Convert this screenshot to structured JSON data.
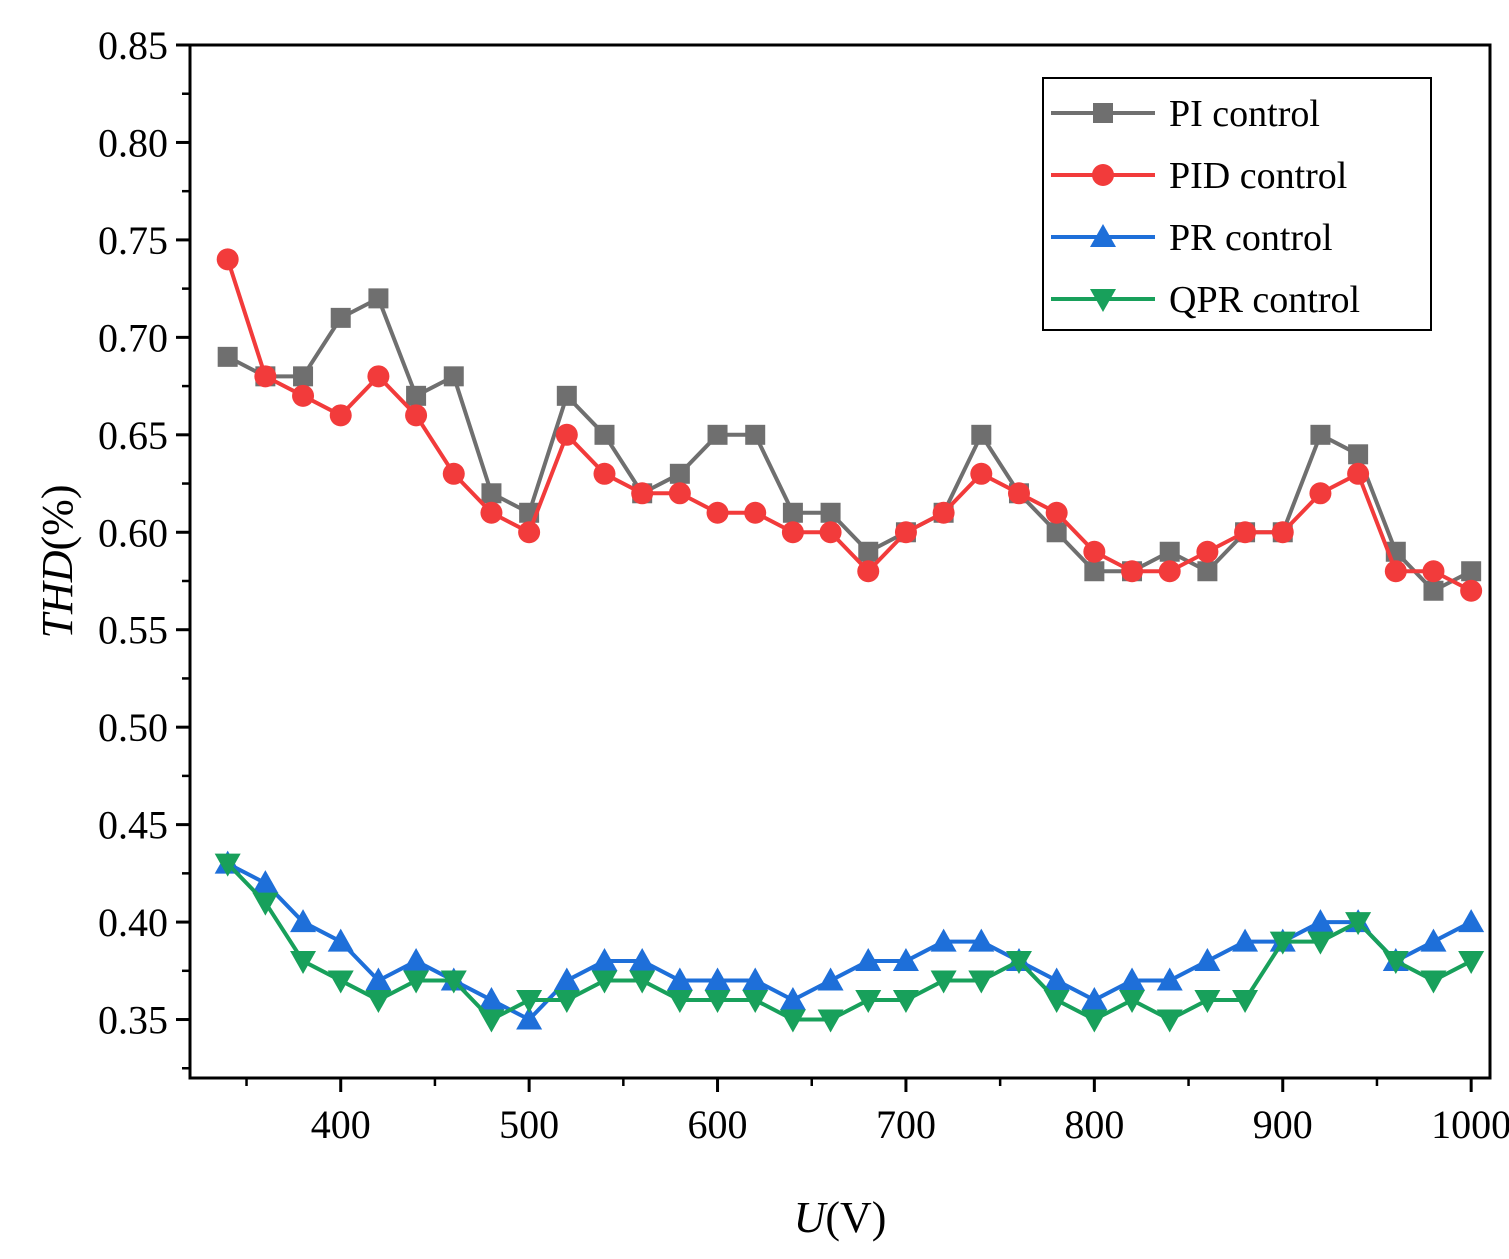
{
  "chart_data": {
    "type": "line",
    "xlabel": {
      "italic": "U",
      "normal": "(V)"
    },
    "ylabel": {
      "italic": "THD",
      "normal": "(%)"
    },
    "xlim": [
      320,
      1010
    ],
    "ylim": [
      0.32,
      0.85
    ],
    "xticks": [
      400,
      500,
      600,
      700,
      800,
      900,
      1000
    ],
    "yticks": [
      "0.35",
      "0.40",
      "0.45",
      "0.50",
      "0.55",
      "0.60",
      "0.65",
      "0.70",
      "0.75",
      "0.80",
      "0.85"
    ],
    "legend_position": "top-right",
    "grid": false,
    "x": [
      340,
      360,
      380,
      400,
      420,
      440,
      460,
      480,
      500,
      520,
      540,
      560,
      580,
      600,
      620,
      640,
      660,
      680,
      700,
      720,
      740,
      760,
      780,
      800,
      820,
      840,
      860,
      880,
      900,
      920,
      940,
      960,
      980,
      1000
    ],
    "series": [
      {
        "name": "PI control",
        "marker": "square",
        "color": "#6f6f6f",
        "values": [
          0.69,
          0.68,
          0.68,
          0.71,
          0.72,
          0.67,
          0.68,
          0.62,
          0.61,
          0.67,
          0.65,
          0.62,
          0.63,
          0.65,
          0.65,
          0.61,
          0.61,
          0.59,
          0.6,
          0.61,
          0.65,
          0.62,
          0.6,
          0.58,
          0.58,
          0.59,
          0.58,
          0.6,
          0.6,
          0.65,
          0.64,
          0.59,
          0.57,
          0.58
        ]
      },
      {
        "name": "PID control",
        "marker": "circle",
        "color": "#f23b3b",
        "values": [
          0.74,
          0.68,
          0.67,
          0.66,
          0.68,
          0.66,
          0.63,
          0.61,
          0.6,
          0.65,
          0.63,
          0.62,
          0.62,
          0.61,
          0.61,
          0.6,
          0.6,
          0.58,
          0.6,
          0.61,
          0.63,
          0.62,
          0.61,
          0.59,
          0.58,
          0.58,
          0.59,
          0.6,
          0.6,
          0.62,
          0.63,
          0.58,
          0.58,
          0.57
        ]
      },
      {
        "name": "PR control",
        "marker": "triangle-up",
        "color": "#1e6fd9",
        "values": [
          0.43,
          0.42,
          0.4,
          0.39,
          0.37,
          0.38,
          0.37,
          0.36,
          0.35,
          0.37,
          0.38,
          0.38,
          0.37,
          0.37,
          0.37,
          0.36,
          0.37,
          0.38,
          0.38,
          0.39,
          0.39,
          0.38,
          0.37,
          0.36,
          0.37,
          0.37,
          0.38,
          0.39,
          0.39,
          0.4,
          0.4,
          0.38,
          0.39,
          0.4
        ]
      },
      {
        "name": "QPR control",
        "marker": "triangle-down",
        "color": "#18a05b",
        "values": [
          0.43,
          0.41,
          0.38,
          0.37,
          0.36,
          0.37,
          0.37,
          0.35,
          0.36,
          0.36,
          0.37,
          0.37,
          0.36,
          0.36,
          0.36,
          0.35,
          0.35,
          0.36,
          0.36,
          0.37,
          0.37,
          0.38,
          0.36,
          0.35,
          0.36,
          0.35,
          0.36,
          0.36,
          0.39,
          0.39,
          0.4,
          0.38,
          0.37,
          0.38
        ]
      }
    ]
  }
}
